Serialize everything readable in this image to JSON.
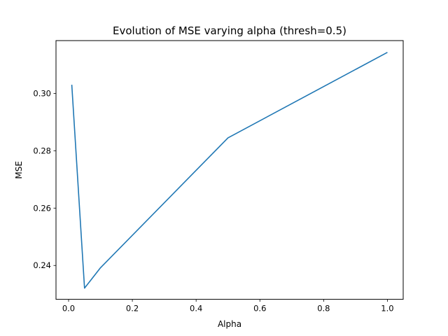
{
  "chart_data": {
    "type": "line",
    "title": "Evolution of MSE varying alpha (thresh=0.5)",
    "xlabel": "Alpha",
    "ylabel": "MSE",
    "xlim": [
      -0.0395,
      1.0495
    ],
    "ylim": [
      0.2282,
      0.3184
    ],
    "xticks": [
      0.0,
      0.2,
      0.4,
      0.6,
      0.8,
      1.0
    ],
    "xtick_labels": [
      "0.0",
      "0.2",
      "0.4",
      "0.6",
      "0.8",
      "1.0"
    ],
    "yticks": [
      0.24,
      0.26,
      0.28,
      0.3
    ],
    "ytick_labels": [
      "0.24",
      "0.26",
      "0.28",
      "0.30"
    ],
    "grid": false,
    "line_color": "#1f77b4",
    "series": [
      {
        "x": [
          0.01,
          0.05,
          0.1,
          0.5,
          1.0
        ],
        "y": [
          0.303,
          0.2321,
          0.2392,
          0.2845,
          0.3143
        ]
      }
    ]
  }
}
